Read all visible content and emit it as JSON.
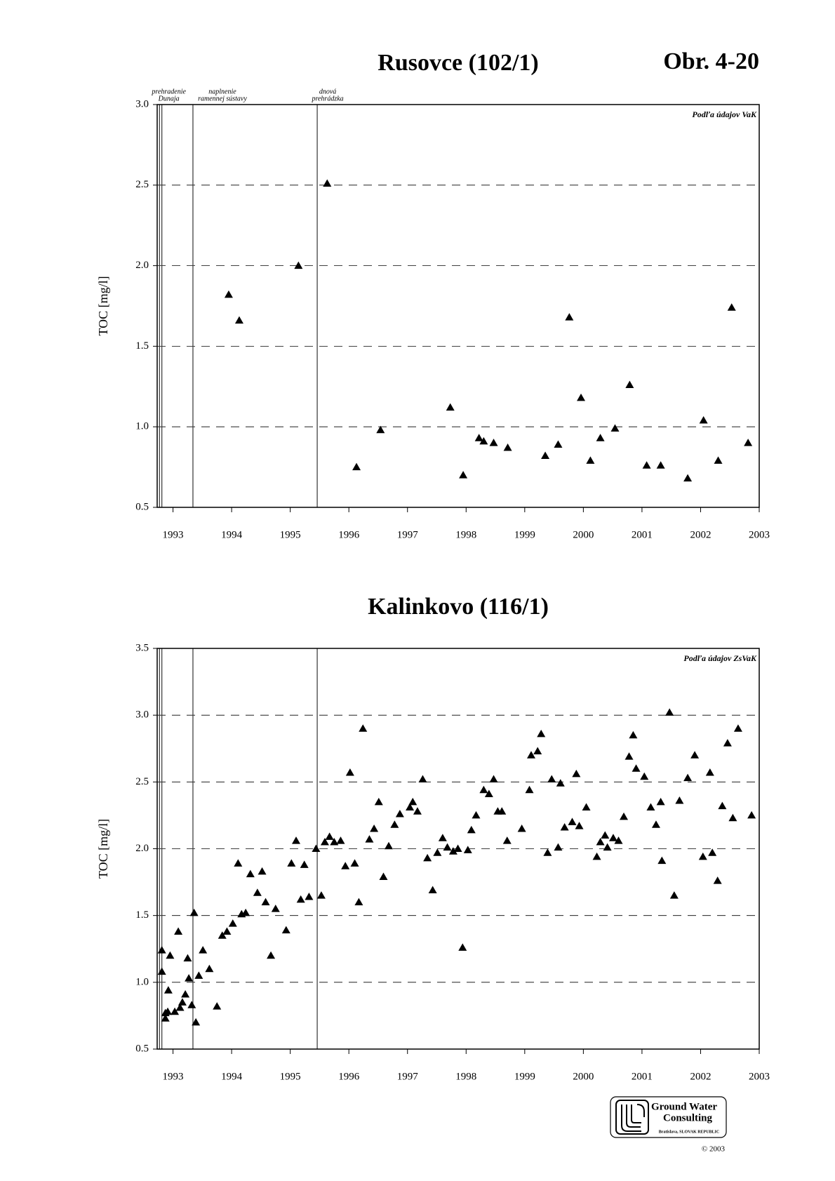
{
  "figure_label": "Obr. 4-20",
  "logo": {
    "lines": [
      "Ground Water",
      "Consulting"
    ],
    "place": "Bratislava, SLOVAK REPUBLIC",
    "copyright": "© 2003"
  },
  "chart_data": [
    {
      "type": "scatter",
      "title": "Rusovce (102/1)",
      "y_label": "TOC [mg/l]",
      "source_note": "Podľa údajov VaK",
      "marker": "triangle",
      "color": "#000000",
      "grid": true,
      "xlim": [
        1992.73,
        2003
      ],
      "xticks": [
        1993,
        1994,
        1995,
        1996,
        1997,
        1998,
        1999,
        2000,
        2001,
        2002,
        2003
      ],
      "ylim": [
        0.5,
        3.0
      ],
      "yticks": [
        0.5,
        {
          "value": 1,
          "label": "1.0"
        },
        1.5,
        {
          "value": 2,
          "label": "2.0"
        },
        2.5,
        {
          "value": 3,
          "label": "3.0"
        }
      ],
      "events": [
        {
          "x": 1992.77
        },
        {
          "x": 1992.81,
          "label": [
            "prehradenie",
            "Dunaja"
          ]
        },
        {
          "x": 1993.34,
          "label": [
            "naplnenie",
            "ramennej sústavy"
          ]
        },
        {
          "x": 1995.46,
          "label": [
            "dnová",
            "prehrádzka"
          ]
        }
      ],
      "x": [
        1993.95,
        1994.13,
        1995.14,
        1995.63,
        1996.13,
        1996.54,
        1997.73,
        1997.95,
        1998.22,
        1998.3,
        1998.47,
        1998.71,
        1999.35,
        1999.57,
        1999.76,
        1999.96,
        2000.12,
        2000.29,
        2000.54,
        2000.79,
        2001.08,
        2001.32,
        2001.78,
        2002.05,
        2002.3,
        2002.53,
        2002.81
      ],
      "values": [
        1.82,
        1.66,
        2.0,
        2.51,
        0.75,
        0.98,
        1.12,
        0.7,
        0.93,
        0.91,
        0.9,
        0.87,
        0.82,
        0.89,
        1.68,
        1.18,
        0.79,
        0.93,
        0.99,
        1.26,
        0.76,
        0.76,
        0.68,
        1.04,
        0.79,
        1.74,
        0.9
      ]
    },
    {
      "type": "scatter",
      "title": "Kalinkovo (116/1)",
      "y_label": "TOC [mg/l]",
      "source_note": "Podľa údajov ZsVaK",
      "marker": "triangle",
      "color": "#000000",
      "grid": true,
      "xlim": [
        1992.73,
        2003
      ],
      "xticks": [
        1993,
        1994,
        1995,
        1996,
        1997,
        1998,
        1999,
        2000,
        2001,
        2002,
        2003
      ],
      "ylim": [
        0.5,
        3.5
      ],
      "yticks": [
        0.5,
        {
          "value": 1,
          "label": "1.0"
        },
        1.5,
        {
          "value": 2,
          "label": "2.0"
        },
        2.5,
        {
          "value": 3,
          "label": "3.0"
        },
        3.5
      ],
      "events": [
        {
          "x": 1992.77
        },
        {
          "x": 1992.81
        },
        {
          "x": 1993.34
        },
        {
          "x": 1995.46
        }
      ],
      "x": [
        1992.81,
        1992.81,
        1992.87,
        1992.87,
        1992.91,
        1992.92,
        1992.95,
        1993.03,
        1993.09,
        1993.12,
        1993.16,
        1993.21,
        1993.25,
        1993.27,
        1993.32,
        1993.36,
        1993.39,
        1993.44,
        1993.51,
        1993.62,
        1993.75,
        1993.84,
        1993.92,
        1994.02,
        1994.11,
        1994.17,
        1994.24,
        1994.32,
        1994.44,
        1994.52,
        1994.58,
        1994.67,
        1994.75,
        1994.93,
        1995.02,
        1995.1,
        1995.18,
        1995.24,
        1995.32,
        1995.44,
        1995.53,
        1995.59,
        1995.67,
        1995.75,
        1995.86,
        1995.94,
        1996.02,
        1996.1,
        1996.17,
        1996.24,
        1996.35,
        1996.43,
        1996.51,
        1996.59,
        1996.68,
        1996.78,
        1996.87,
        1997.04,
        1997.09,
        1997.17,
        1997.26,
        1997.34,
        1997.43,
        1997.51,
        1997.6,
        1997.68,
        1997.78,
        1997.86,
        1997.94,
        1998.03,
        1998.09,
        1998.17,
        1998.3,
        1998.39,
        1998.47,
        1998.54,
        1998.61,
        1998.7,
        1998.95,
        1999.08,
        1999.11,
        1999.22,
        1999.28,
        1999.39,
        1999.46,
        1999.57,
        1999.61,
        1999.68,
        1999.81,
        1999.88,
        1999.93,
        2000.05,
        2000.23,
        2000.29,
        2000.37,
        2000.41,
        2000.51,
        2000.6,
        2000.69,
        2000.78,
        2000.85,
        2000.9,
        2001.04,
        2001.15,
        2001.24,
        2001.32,
        2001.34,
        2001.47,
        2001.55,
        2001.64,
        2001.78,
        2001.9,
        2002.04,
        2002.16,
        2002.2,
        2002.29,
        2002.37,
        2002.46,
        2002.55,
        2002.64,
        2002.87
      ],
      "values": [
        1.24,
        1.08,
        0.77,
        0.73,
        0.78,
        0.94,
        1.2,
        0.78,
        1.38,
        0.81,
        0.85,
        0.91,
        1.18,
        1.03,
        0.83,
        1.52,
        0.7,
        1.05,
        1.24,
        1.1,
        0.82,
        1.35,
        1.38,
        1.44,
        1.89,
        1.51,
        1.52,
        1.81,
        1.67,
        1.83,
        1.6,
        1.2,
        1.55,
        1.39,
        1.89,
        2.06,
        1.62,
        1.88,
        1.64,
        2.0,
        1.65,
        2.05,
        2.09,
        2.05,
        2.06,
        1.87,
        2.57,
        1.89,
        1.6,
        2.9,
        2.07,
        2.15,
        2.35,
        1.79,
        2.02,
        2.18,
        2.26,
        2.31,
        2.35,
        2.28,
        2.52,
        1.93,
        1.69,
        1.97,
        2.08,
        2.01,
        1.98,
        2.0,
        1.26,
        1.99,
        2.14,
        2.25,
        2.44,
        2.41,
        2.52,
        2.28,
        2.28,
        2.06,
        2.15,
        2.44,
        2.7,
        2.73,
        2.86,
        1.97,
        2.52,
        2.01,
        2.49,
        2.16,
        2.2,
        2.56,
        2.17,
        2.31,
        1.94,
        2.05,
        2.1,
        2.01,
        2.08,
        2.06,
        2.24,
        2.69,
        2.85,
        2.6,
        2.54,
        2.31,
        2.18,
        2.35,
        1.91,
        3.02,
        1.65,
        2.36,
        2.53,
        2.7,
        1.94,
        2.57,
        1.97,
        1.76,
        2.32,
        2.79,
        2.23,
        2.9,
        2.25
      ]
    }
  ]
}
